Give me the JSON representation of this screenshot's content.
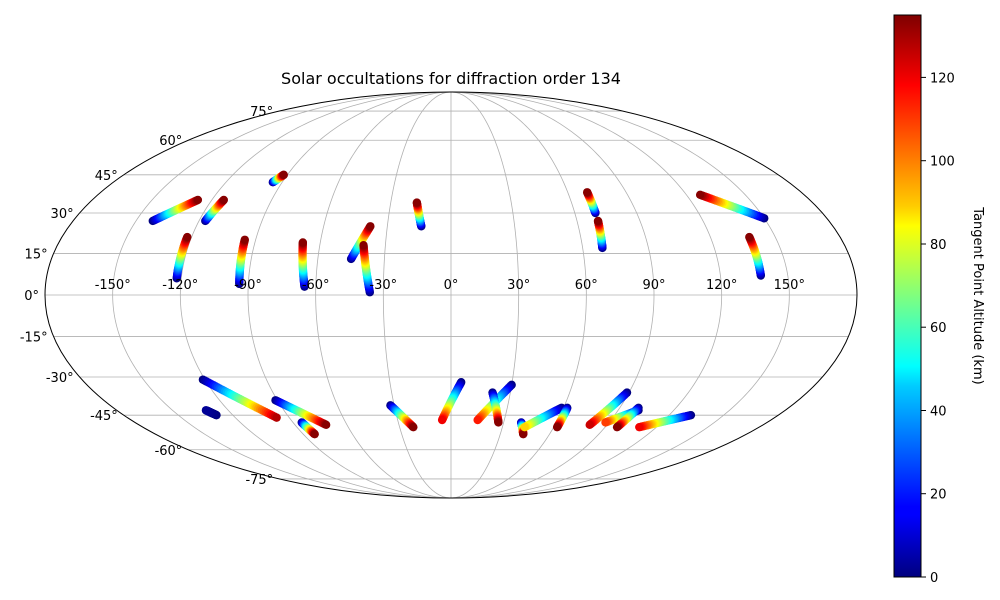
{
  "chart_data": {
    "type": "scatter",
    "projection": "mollweide",
    "title": "Solar occultations for diffraction order 134",
    "lon_ticks": [
      "-150°",
      "-120°",
      "-90°",
      "-60°",
      "-30°",
      "0°",
      "30°",
      "60°",
      "90°",
      "120°",
      "150°"
    ],
    "lon_tick_values": [
      -150,
      -120,
      -90,
      -60,
      -30,
      0,
      30,
      60,
      90,
      120,
      150
    ],
    "lat_ticks": [
      "-75°",
      "-60°",
      "-45°",
      "-30°",
      "-15°",
      "0°",
      "15°",
      "30°",
      "45°",
      "60°",
      "75°"
    ],
    "lat_tick_values": [
      -75,
      -60,
      -45,
      -30,
      -15,
      0,
      15,
      30,
      45,
      60,
      75
    ],
    "grid": true,
    "colorbar": {
      "label": "Tangent Point Altitude (km)",
      "range": [
        0,
        135
      ],
      "ticks": [
        "0",
        "20",
        "40",
        "60",
        "80",
        "100",
        "120"
      ],
      "tick_values": [
        0,
        20,
        40,
        60,
        80,
        100,
        120
      ],
      "colormap": "jet",
      "placement": "right"
    },
    "tracks": [
      {
        "lon0": -142,
        "lat0": 27,
        "alt0": 0,
        "lon1": -127,
        "lat1": 35,
        "alt1": 134
      },
      {
        "lon0": -117,
        "lat0": 27,
        "alt0": 0,
        "lon1": -114,
        "lat1": 35,
        "alt1": 134
      },
      {
        "lon0": -95,
        "lat0": 42,
        "alt0": 0,
        "lon1": -92,
        "lat1": 45,
        "alt1": 134
      },
      {
        "lon0": -122,
        "lat0": 6,
        "alt0": 0,
        "lon1": -122,
        "lat1": 21,
        "alt1": 134
      },
      {
        "lon0": -94,
        "lat0": 4,
        "alt0": 0,
        "lon1": -95,
        "lat1": 20,
        "alt1": 134
      },
      {
        "lon0": -65,
        "lat0": 3,
        "alt0": 0,
        "lon1": -68,
        "lat1": 19,
        "alt1": 134
      },
      {
        "lon0": -45,
        "lat0": 13,
        "alt0": 0,
        "lon1": -38,
        "lat1": 25,
        "alt1": 134
      },
      {
        "lon0": -36,
        "lat0": 1,
        "alt0": 0,
        "lon1": -40,
        "lat1": 18,
        "alt1": 134
      },
      {
        "lon0": -14,
        "lat0": 25,
        "alt0": 0,
        "lon1": -17,
        "lat1": 34,
        "alt1": 134
      },
      {
        "lon0": 70,
        "lat0": 30,
        "alt0": 0,
        "lon1": 70,
        "lat1": 38,
        "alt1": 134
      },
      {
        "lon0": 69,
        "lat0": 17,
        "alt0": 0,
        "lon1": 70,
        "lat1": 27,
        "alt1": 134
      },
      {
        "lon0": 138,
        "lat0": 7,
        "alt0": 0,
        "lon1": 138,
        "lat1": 21,
        "alt1": 134
      },
      {
        "lon0": 150,
        "lat0": 28,
        "alt0": 0,
        "lon1": 127,
        "lat1": 37,
        "alt1": 134
      },
      {
        "lon0": -129,
        "lat0": -45,
        "alt0": 0,
        "lon1": -132,
        "lat1": -43,
        "alt1": 3
      },
      {
        "lon0": -121,
        "lat0": -31,
        "alt0": 0,
        "lon1": -97,
        "lat1": -46,
        "alt1": 128
      },
      {
        "lon0": -91,
        "lat0": -39,
        "alt0": 0,
        "lon1": -72,
        "lat1": -49,
        "alt1": 134
      },
      {
        "lon0": -85,
        "lat0": -48,
        "alt0": 0,
        "lon1": -83,
        "lat1": -53,
        "alt1": 134
      },
      {
        "lon0": -32,
        "lat0": -41,
        "alt0": 0,
        "lon1": -22,
        "lat1": -50,
        "alt1": 134
      },
      {
        "lon0": 5,
        "lat0": -32,
        "alt0": 0,
        "lon1": -5,
        "lat1": -47,
        "alt1": 120
      },
      {
        "lon0": 30,
        "lat0": -33,
        "alt0": 0,
        "lon1": 15,
        "lat1": -47,
        "alt1": 115
      },
      {
        "lon0": 21,
        "lat0": -36,
        "alt0": 0,
        "lon1": 27,
        "lat1": -48,
        "alt1": 134
      },
      {
        "lon0": 40,
        "lat0": -48,
        "alt0": 0,
        "lon1": 44,
        "lat1": -53,
        "alt1": 134
      },
      {
        "lon0": 59,
        "lat0": -42,
        "alt0": 0,
        "lon1": 43,
        "lat1": -50,
        "alt1": 90
      },
      {
        "lon0": 62,
        "lat0": -42,
        "alt0": 0,
        "lon1": 62,
        "lat1": -50,
        "alt1": 134
      },
      {
        "lon0": 89,
        "lat0": -36,
        "alt0": 0,
        "lon1": 80,
        "lat1": -49,
        "alt1": 125
      },
      {
        "lon0": 101,
        "lat0": -43,
        "alt0": 0,
        "lon1": 88,
        "lat1": -48,
        "alt1": 110
      },
      {
        "lon0": 100,
        "lat0": -42,
        "alt0": 0,
        "lon1": 97,
        "lat1": -50,
        "alt1": 134
      },
      {
        "lon0": 132,
        "lat0": -45,
        "alt0": 0,
        "lon1": 110,
        "lat1": -50,
        "alt1": 120
      }
    ]
  }
}
